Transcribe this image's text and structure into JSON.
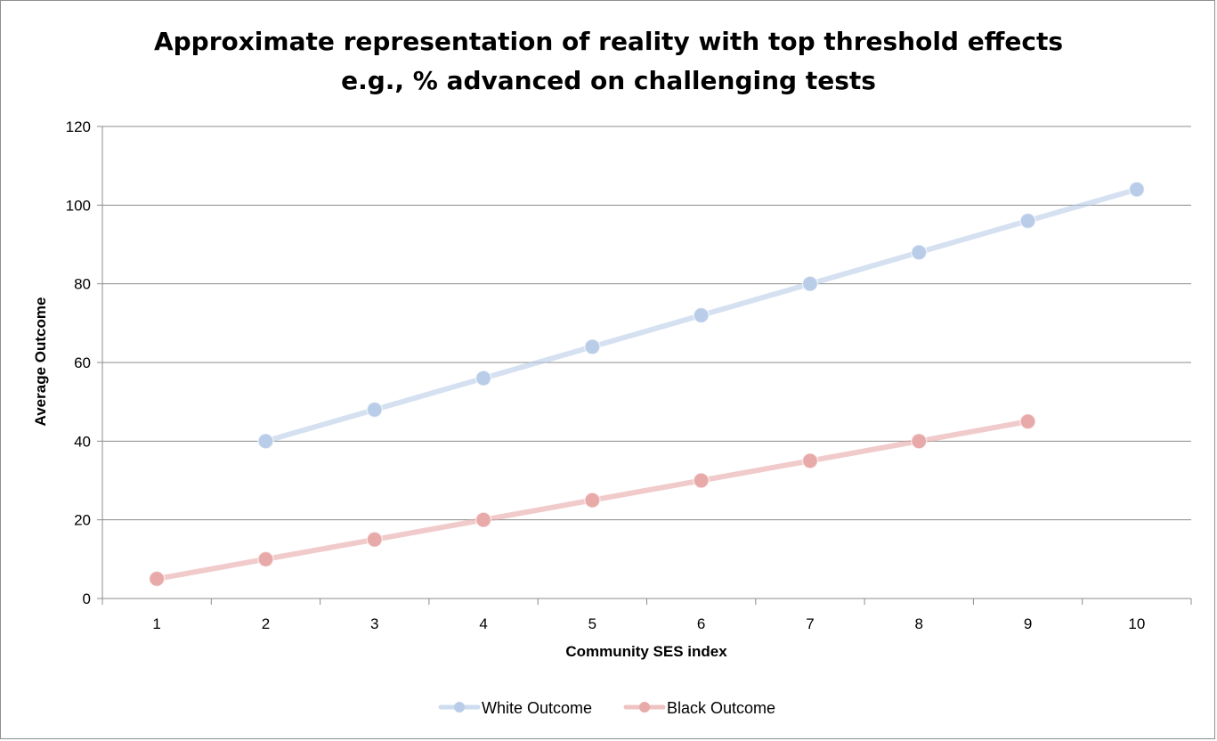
{
  "chart_data": {
    "type": "line",
    "title_line1": "Approximate representation of reality with top threshold effects",
    "title_line2": "e.g., % advanced on challenging tests",
    "xlabel": "Community SES index",
    "ylabel": "Average Outcome",
    "categories": [
      "1",
      "2",
      "3",
      "4",
      "5",
      "6",
      "7",
      "8",
      "9",
      "10"
    ],
    "x": [
      1,
      2,
      3,
      4,
      5,
      6,
      7,
      8,
      9,
      10
    ],
    "ylim": [
      0,
      120
    ],
    "yticks": [
      0,
      20,
      40,
      60,
      80,
      100,
      120
    ],
    "grid": true,
    "legend_position": "bottom",
    "series": [
      {
        "name": "White Outcome",
        "color": "#b9cde8",
        "values": [
          null,
          40,
          48,
          56,
          64,
          72,
          80,
          88,
          96,
          104
        ]
      },
      {
        "name": "Black Outcome",
        "color": "#e8a9a9",
        "values": [
          5,
          10,
          15,
          20,
          25,
          30,
          35,
          40,
          45,
          null
        ]
      }
    ]
  }
}
